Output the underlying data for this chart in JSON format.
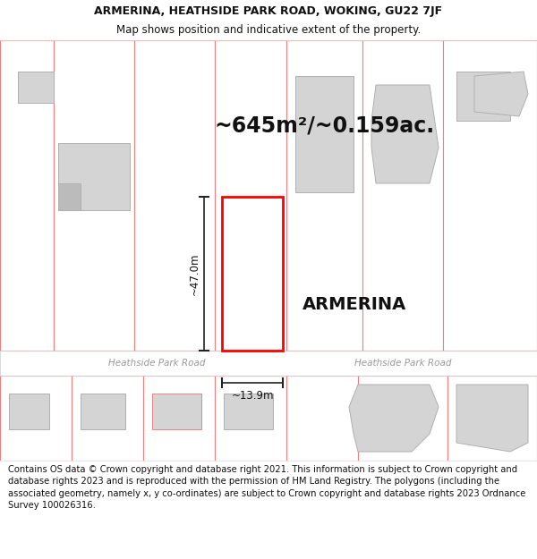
{
  "title_line1": "ARMERINA, HEATHSIDE PARK ROAD, WOKING, GU22 7JF",
  "title_line2": "Map shows position and indicative extent of the property.",
  "area_label": "~645m²/~0.159ac.",
  "property_label": "ARMERINA",
  "height_label": "~47.0m",
  "width_label": "~13.9m",
  "road_label_left": "Heathside Park Road",
  "road_label_right": "Heathside Park Road",
  "footer_text": "Contains OS data © Crown copyright and database right 2021. This information is subject to Crown copyright and database rights 2023 and is reproduced with the permission of HM Land Registry. The polygons (including the associated geometry, namely x, y co-ordinates) are subject to Crown copyright and database rights 2023 Ordnance Survey 100026316.",
  "bg_color": "#ffffff",
  "map_bg": "#ffffff",
  "property_fill": "#ffffff",
  "property_edge": "#ff0000",
  "road_color": "#ffffff",
  "plot_stroke": "#f08080",
  "building_fill": "#d4d4d4",
  "building_stroke": "#b0b0b0",
  "dim_line_color": "#222222",
  "title_fontsize": 9.0,
  "subtitle_fontsize": 8.5,
  "area_fontsize": 17,
  "property_label_fontsize": 14,
  "dim_label_fontsize": 8.5,
  "road_label_fontsize": 7.5,
  "footer_fontsize": 7.2
}
